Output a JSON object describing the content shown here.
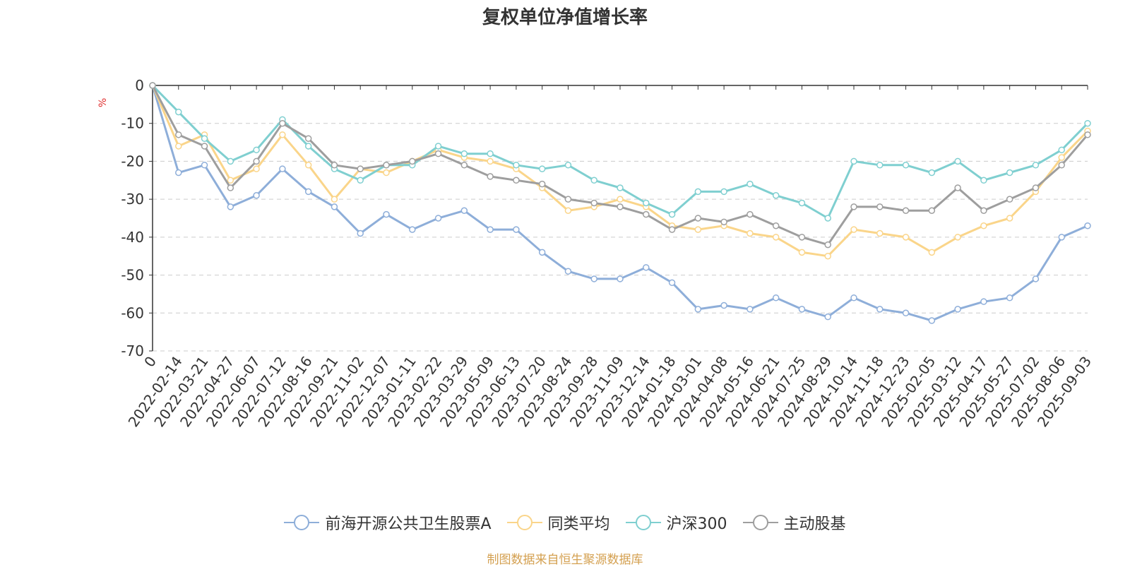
{
  "title": "复权单位净值增长率",
  "source": "制图数据来自恒生聚源数据库",
  "chart_data": {
    "type": "line",
    "title": "复权单位净值增长率",
    "ylabel": "%",
    "ylim": [
      -70,
      0
    ],
    "yticks": [
      0,
      -10,
      -20,
      -30,
      -40,
      -50,
      -60,
      -70
    ],
    "grid": "horizontal dashed",
    "legend_position": "bottom",
    "x_labels": [
      "0",
      "2022-02-14",
      "2022-03-21",
      "2022-04-27",
      "2022-06-07",
      "2022-07-12",
      "2022-08-16",
      "2022-09-21",
      "2022-11-02",
      "2022-12-07",
      "2023-01-11",
      "2023-02-22",
      "2023-03-29",
      "2023-05-09",
      "2023-06-13",
      "2023-07-20",
      "2023-08-24",
      "2023-09-28",
      "2023-11-09",
      "2023-12-14",
      "2024-01-18",
      "2024-03-01",
      "2024-04-08",
      "2024-05-16",
      "2024-06-21",
      "2024-07-25",
      "2024-08-29",
      "2024-10-14",
      "2024-11-18",
      "2024-12-23",
      "2025-02-05",
      "2025-03-12",
      "2025-04-17",
      "2025-05-27",
      "2025-07-02",
      "2025-08-06",
      "2025-09-03"
    ],
    "series": [
      {
        "name": "前海开源公共卫生股票A",
        "color": "#8eaed9",
        "values": [
          0,
          -23,
          -21,
          -32,
          -29,
          -22,
          -28,
          -32,
          -39,
          -34,
          -38,
          -35,
          -33,
          -38,
          -38,
          -44,
          -49,
          -51,
          -51,
          -48,
          -52,
          -59,
          -58,
          -59,
          -56,
          -59,
          -61,
          -56,
          -59,
          -60,
          -62,
          -59,
          -57,
          -56,
          -51,
          -40,
          -37
        ]
      },
      {
        "name": "同类平均",
        "color": "#fad58a",
        "values": [
          0,
          -16,
          -13,
          -25,
          -22,
          -13,
          -21,
          -30,
          -22,
          -23,
          -20,
          -17,
          -19,
          -20,
          -22,
          -27,
          -33,
          -32,
          -30,
          -32,
          -37,
          -38,
          -37,
          -39,
          -40,
          -44,
          -45,
          -38,
          -39,
          -40,
          -44,
          -40,
          -37,
          -35,
          -28,
          -19,
          -12
        ]
      },
      {
        "name": "沪深300",
        "color": "#7fcfd0",
        "values": [
          0,
          -7,
          -14,
          -20,
          -17,
          -9,
          -16,
          -22,
          -25,
          -21,
          -21,
          -16,
          -18,
          -18,
          -21,
          -22,
          -21,
          -25,
          -27,
          -31,
          -34,
          -28,
          -28,
          -26,
          -29,
          -31,
          -35,
          -20,
          -21,
          -21,
          -23,
          -20,
          -25,
          -23,
          -21,
          -17,
          -10
        ]
      },
      {
        "name": "主动股基",
        "color": "#9e9e9e",
        "values": [
          0,
          -13,
          -16,
          -27,
          -20,
          -10,
          -14,
          -21,
          -22,
          -21,
          -20,
          -18,
          -21,
          -24,
          -25,
          -26,
          -30,
          -31,
          -32,
          -34,
          -38,
          -35,
          -36,
          -34,
          -37,
          -40,
          -42,
          -32,
          -32,
          -33,
          -33,
          -27,
          -33,
          -30,
          -27,
          -21,
          -13
        ]
      }
    ]
  }
}
